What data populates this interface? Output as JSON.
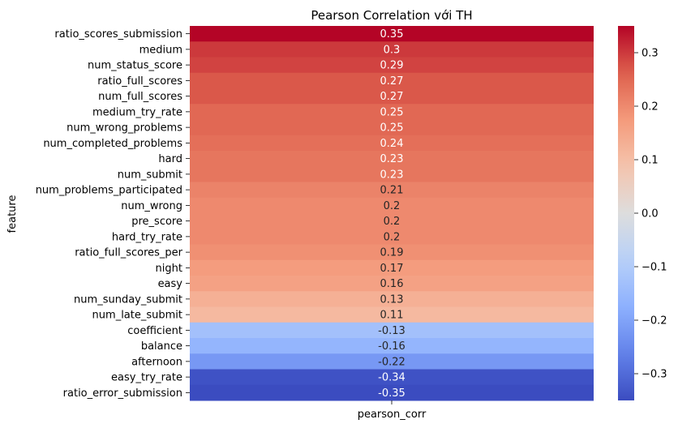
{
  "chart_data": {
    "type": "heatmap",
    "title": "Pearson Correlation với TH",
    "ylabel": "feature",
    "xlabel": "",
    "columns": [
      "pearson_corr"
    ],
    "rows": [
      {
        "feature": "ratio_scores_submission",
        "value": 0.35,
        "label": "0.35"
      },
      {
        "feature": "medium",
        "value": 0.3,
        "label": "0.3"
      },
      {
        "feature": "num_status_score",
        "value": 0.29,
        "label": "0.29"
      },
      {
        "feature": "ratio_full_scores",
        "value": 0.27,
        "label": "0.27"
      },
      {
        "feature": "num_full_scores",
        "value": 0.27,
        "label": "0.27"
      },
      {
        "feature": "medium_try_rate",
        "value": 0.25,
        "label": "0.25"
      },
      {
        "feature": "num_wrong_problems",
        "value": 0.25,
        "label": "0.25"
      },
      {
        "feature": "num_completed_problems",
        "value": 0.24,
        "label": "0.24"
      },
      {
        "feature": "hard",
        "value": 0.23,
        "label": "0.23"
      },
      {
        "feature": "num_submit",
        "value": 0.23,
        "label": "0.23"
      },
      {
        "feature": "num_problems_participated",
        "value": 0.21,
        "label": "0.21"
      },
      {
        "feature": "num_wrong",
        "value": 0.2,
        "label": "0.2"
      },
      {
        "feature": "pre_score",
        "value": 0.2,
        "label": "0.2"
      },
      {
        "feature": "hard_try_rate",
        "value": 0.2,
        "label": "0.2"
      },
      {
        "feature": "ratio_full_scores_per",
        "value": 0.19,
        "label": "0.19"
      },
      {
        "feature": "night",
        "value": 0.17,
        "label": "0.17"
      },
      {
        "feature": "easy",
        "value": 0.16,
        "label": "0.16"
      },
      {
        "feature": "num_sunday_submit",
        "value": 0.13,
        "label": "0.13"
      },
      {
        "feature": "num_late_submit",
        "value": 0.11,
        "label": "0.11"
      },
      {
        "feature": "coefficient",
        "value": -0.13,
        "label": "-0.13"
      },
      {
        "feature": "balance",
        "value": -0.16,
        "label": "-0.16"
      },
      {
        "feature": "afternoon",
        "value": -0.22,
        "label": "-0.22"
      },
      {
        "feature": "easy_try_rate",
        "value": -0.34,
        "label": "-0.34"
      },
      {
        "feature": "ratio_error_submission",
        "value": -0.35,
        "label": "-0.35"
      }
    ],
    "colorbar": {
      "colormap": "coolwarm",
      "range": [
        -0.35,
        0.35
      ],
      "ticks": [
        0.3,
        0.2,
        0.1,
        0.0,
        -0.1,
        -0.2,
        -0.3
      ],
      "tick_labels": [
        "0.3",
        "0.2",
        "0.1",
        "0.0",
        "−0.1",
        "−0.2",
        "−0.3"
      ]
    },
    "grid": false
  }
}
